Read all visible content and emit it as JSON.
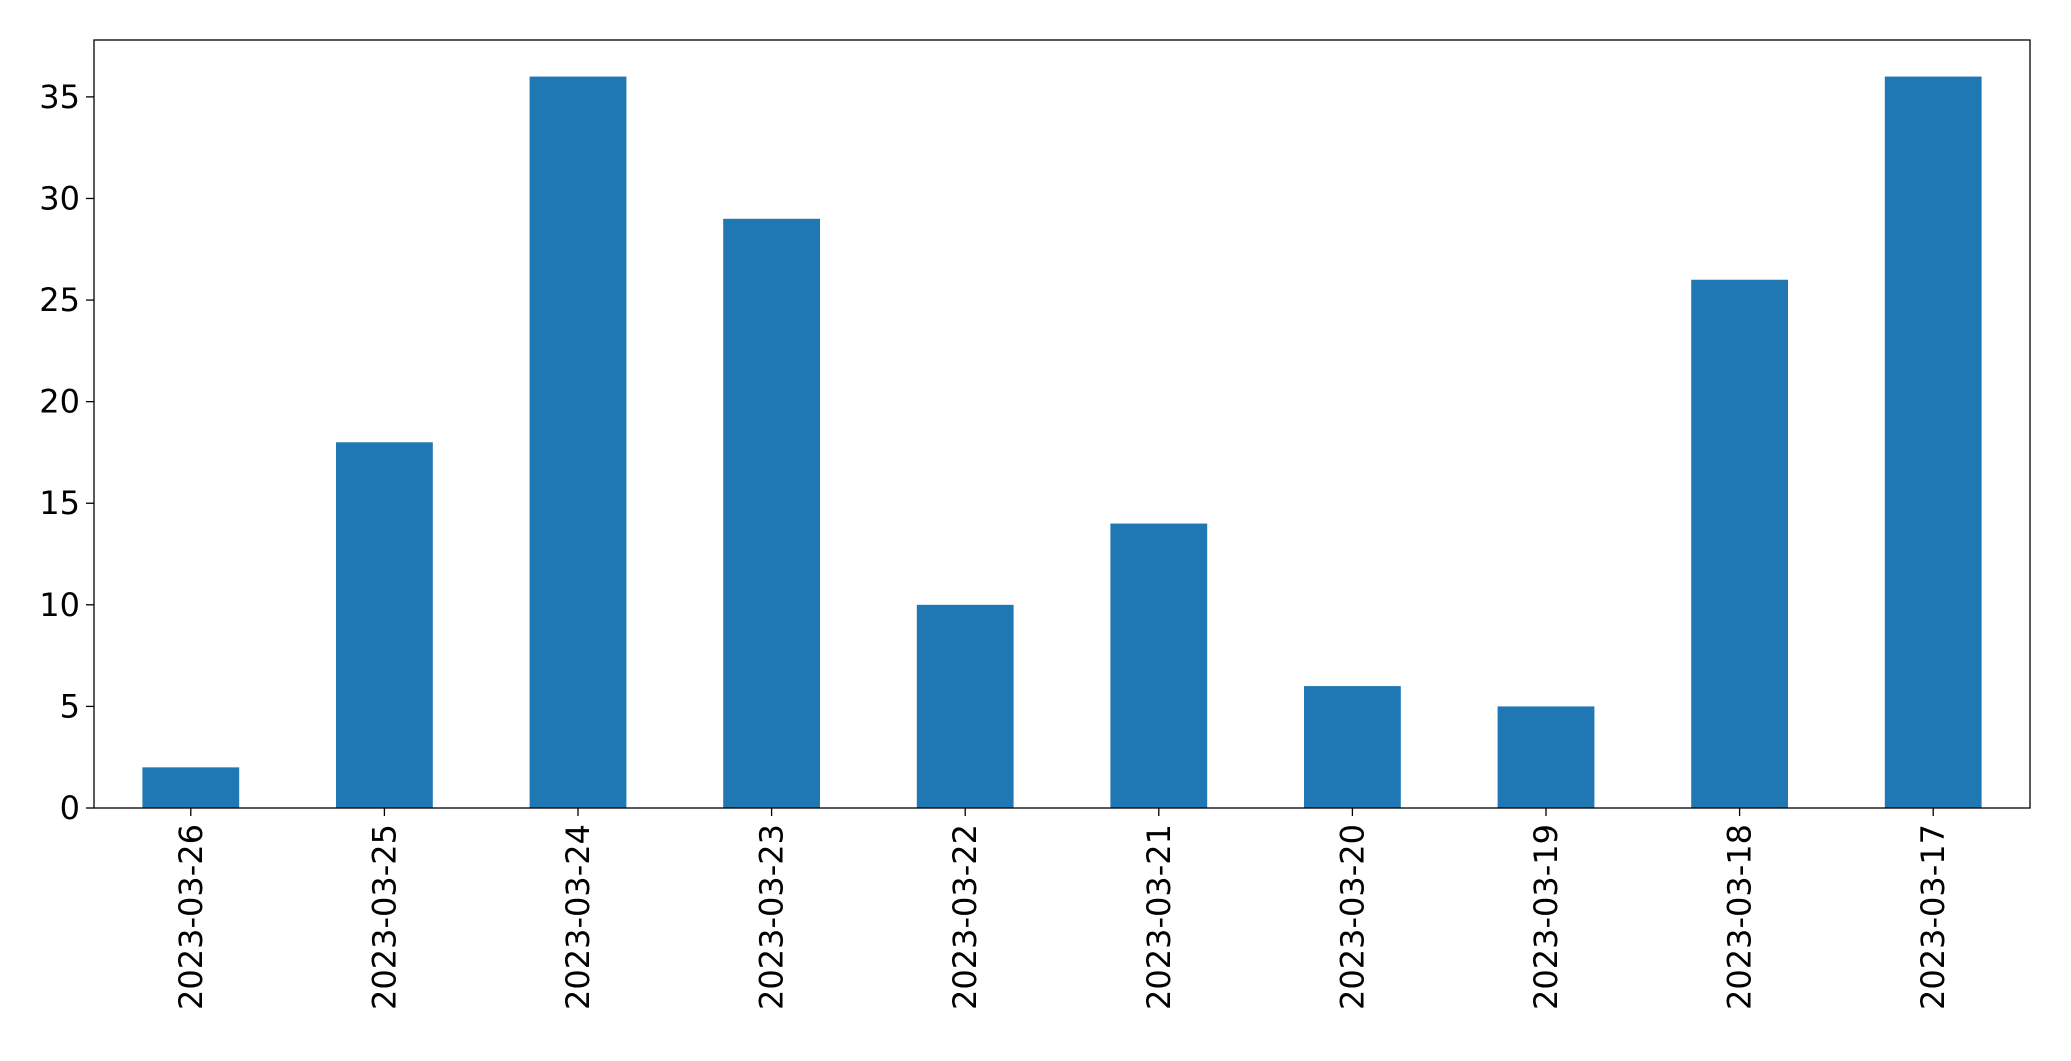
{
  "chart_data": {
    "type": "bar",
    "categories": [
      "2023-03-26",
      "2023-03-25",
      "2023-03-24",
      "2023-03-23",
      "2023-03-22",
      "2023-03-21",
      "2023-03-20",
      "2023-03-19",
      "2023-03-18",
      "2023-03-17"
    ],
    "values": [
      2,
      18,
      36,
      29,
      10,
      14,
      6,
      5,
      26,
      36
    ],
    "color": "#1f77b4",
    "ylim": [
      0,
      37.8
    ],
    "yticks": [
      0,
      5,
      10,
      15,
      20,
      25,
      30,
      35
    ],
    "grid": false
  }
}
